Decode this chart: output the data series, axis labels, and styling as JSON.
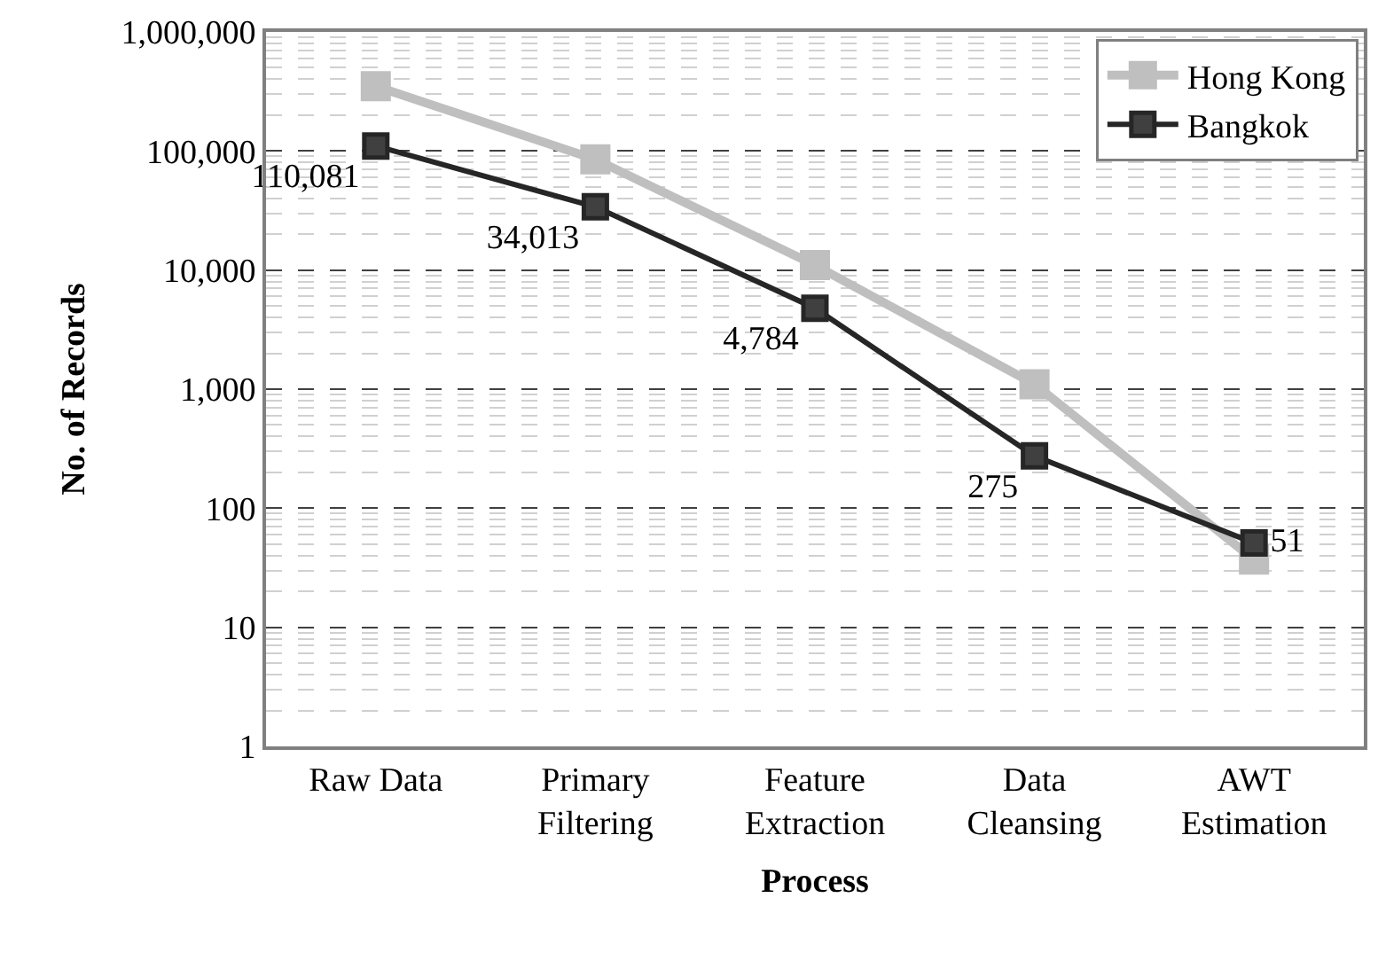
{
  "chart_data": {
    "type": "line",
    "xlabel": "Process",
    "ylabel": "No. of Records",
    "categories": [
      "Raw Data",
      "Primary\nFiltering",
      "Feature\nExtraction",
      "Data\nCleansing",
      "AWT\nEstimation"
    ],
    "series": [
      {
        "name": "Hong Kong",
        "color": "#bfbfbf",
        "values": [
          350000,
          85000,
          11000,
          1100,
          37
        ]
      },
      {
        "name": "Bangkok",
        "color": "#262626",
        "values": [
          110081,
          34013,
          4784,
          275,
          51
        ],
        "value_labels": [
          "110,081",
          "34,013",
          "4,784",
          "275",
          "51"
        ]
      }
    ],
    "log": true,
    "ylim": [
      1,
      1000000
    ],
    "yticks": [
      {
        "value": 1,
        "label": "1"
      },
      {
        "value": 10,
        "label": "10"
      },
      {
        "value": 100,
        "label": "100"
      },
      {
        "value": 1000,
        "label": "1,000"
      },
      {
        "value": 10000,
        "label": "10,000"
      },
      {
        "value": 100000,
        "label": "100,000"
      },
      {
        "value": 1000000,
        "label": "1,000,000"
      }
    ],
    "grid": "y",
    "legend": "top right",
    "marker": "square",
    "line_style": "solid"
  }
}
